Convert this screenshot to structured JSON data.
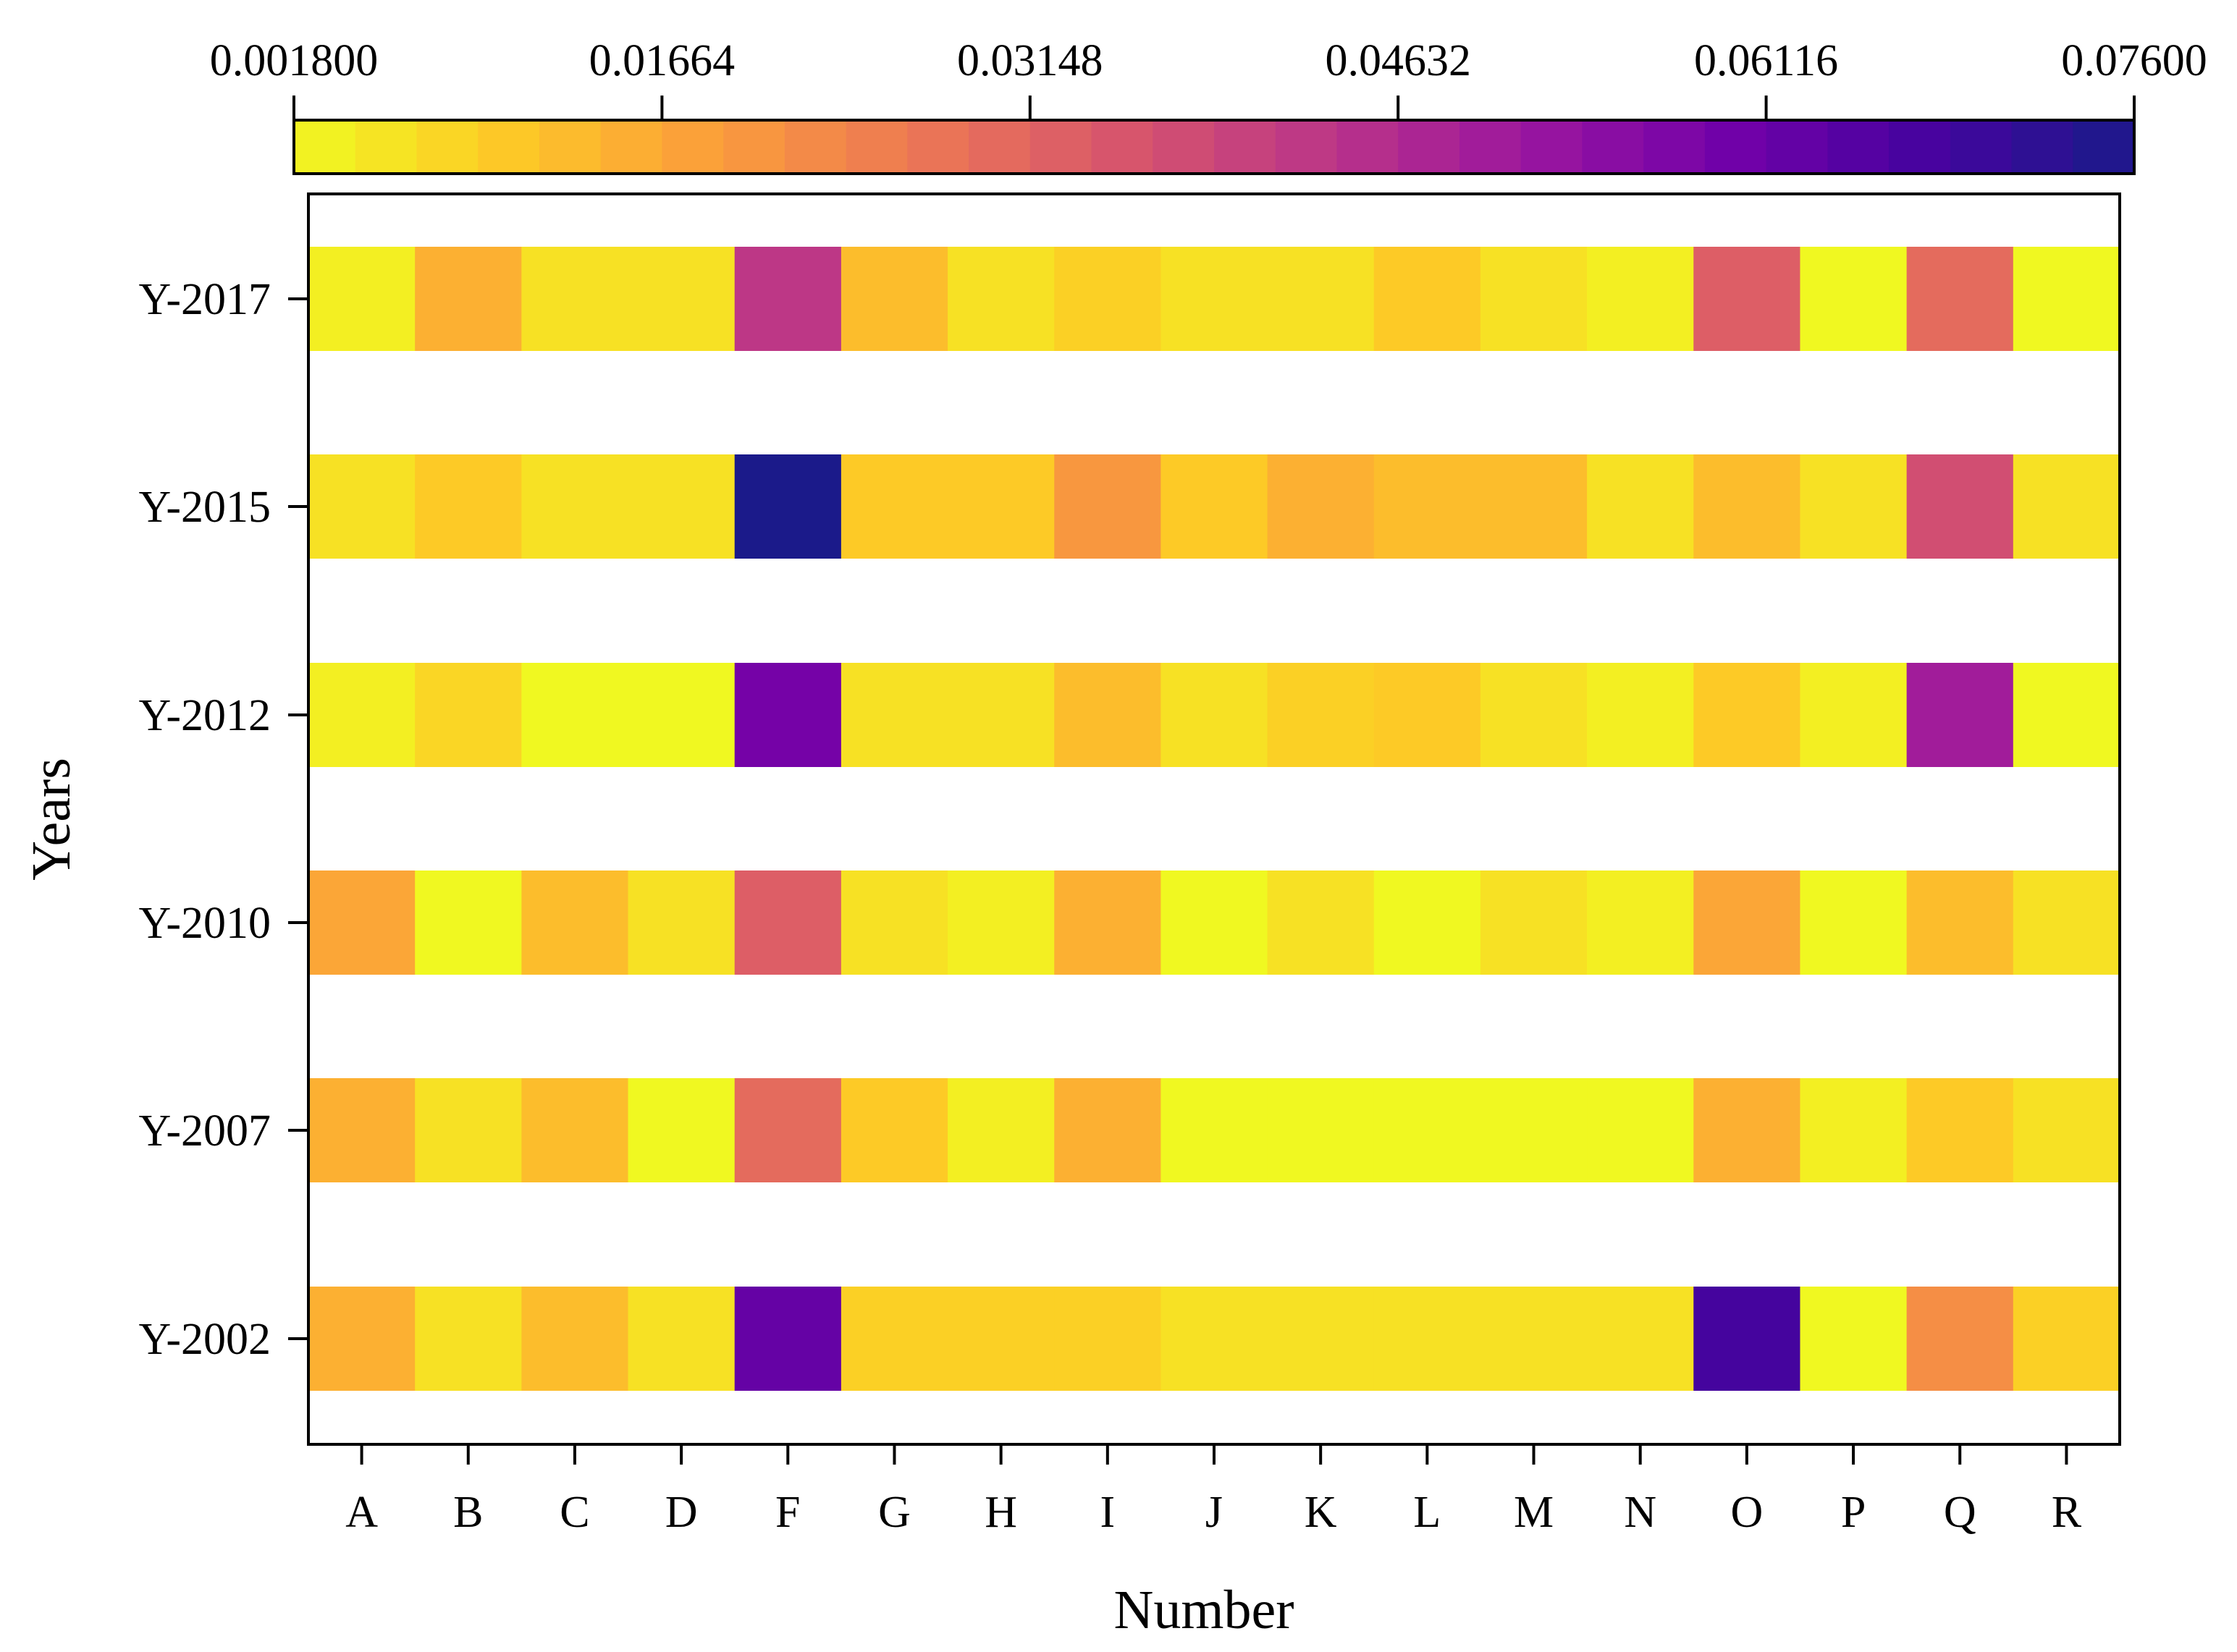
{
  "chart_data": {
    "type": "heatmap",
    "title": "",
    "xlabel": "Number",
    "ylabel": "Years",
    "x_categories": [
      "A",
      "B",
      "C",
      "D",
      "F",
      "G",
      "H",
      "I",
      "J",
      "K",
      "L",
      "M",
      "N",
      "O",
      "P",
      "Q",
      "R"
    ],
    "y_categories": [
      "Y-2017",
      "Y-2015",
      "Y-2012",
      "Y-2010",
      "Y-2007",
      "Y-2002"
    ],
    "values": [
      [
        0.0035,
        0.015,
        0.006,
        0.006,
        0.043,
        0.0125,
        0.006,
        0.009,
        0.006,
        0.006,
        0.01,
        0.006,
        0.0035,
        0.033,
        0.002,
        0.03,
        0.002
      ],
      [
        0.006,
        0.01,
        0.006,
        0.006,
        0.076,
        0.01,
        0.01,
        0.02,
        0.01,
        0.015,
        0.0125,
        0.0125,
        0.006,
        0.0125,
        0.006,
        0.037,
        0.006
      ],
      [
        0.0035,
        0.008,
        0.002,
        0.002,
        0.059,
        0.006,
        0.006,
        0.0125,
        0.006,
        0.009,
        0.01,
        0.006,
        0.0035,
        0.01,
        0.0035,
        0.05,
        0.002
      ],
      [
        0.017,
        0.002,
        0.0125,
        0.006,
        0.033,
        0.006,
        0.0035,
        0.015,
        0.002,
        0.006,
        0.002,
        0.006,
        0.0035,
        0.017,
        0.002,
        0.0125,
        0.006
      ],
      [
        0.015,
        0.006,
        0.0125,
        0.002,
        0.03,
        0.01,
        0.0035,
        0.015,
        0.002,
        0.002,
        0.002,
        0.002,
        0.002,
        0.015,
        0.0035,
        0.01,
        0.006
      ],
      [
        0.015,
        0.006,
        0.0125,
        0.006,
        0.062,
        0.009,
        0.009,
        0.009,
        0.006,
        0.006,
        0.006,
        0.006,
        0.006,
        0.068,
        0.002,
        0.022,
        0.009
      ]
    ],
    "colorbar": {
      "min": 0.0018,
      "max": 0.076,
      "ticks": [
        0.0018,
        0.01664,
        0.03148,
        0.04632,
        0.06116,
        0.076
      ],
      "tick_labels": [
        "0.001800",
        "0.01664",
        "0.03148",
        "0.04632",
        "0.06116",
        "0.07600"
      ],
      "n_bins": 30,
      "colormap": [
        "#f0f921",
        "#fdca26",
        "#fb9f3a",
        "#ed7953",
        "#d8576b",
        "#bd3786",
        "#9c179e",
        "#7201a8",
        "#46039f",
        "#1b1a8a"
      ]
    }
  }
}
